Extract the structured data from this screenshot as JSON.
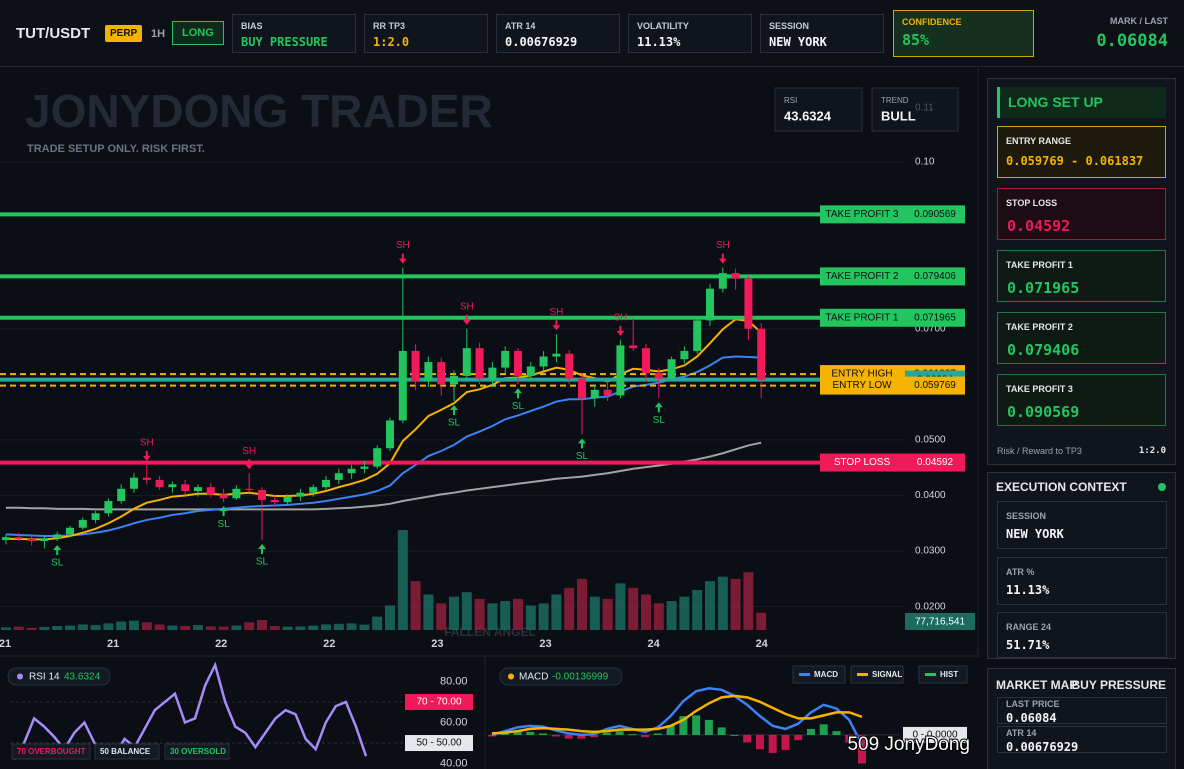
{
  "header": {
    "symbol": "TUT/USDT",
    "badge": "PERP",
    "timeframe": "1H",
    "side": "LONG",
    "stats": [
      {
        "label": "BIAS",
        "value": "BUY PRESSURE"
      },
      {
        "label": "RR TP3",
        "value": "1:2.0"
      },
      {
        "label": "ATR 14",
        "value": "0.00676929"
      },
      {
        "label": "VOLATILITY",
        "value": "11.13%"
      },
      {
        "label": "SESSION",
        "value": "NEW YORK"
      }
    ],
    "confidence": {
      "label": "CONFIDENCE",
      "value": "85%"
    },
    "mark": {
      "label": "MARK / LAST",
      "value": "0.06084"
    }
  },
  "main_chart": {
    "type": "candlestick",
    "watermark": "JONYDONG TRADER",
    "subtitle": "TRADE SETUP ONLY. RISK FIRST.",
    "footer_watermark": "FALLEN ANGEL",
    "rsi_box": {
      "label": "RSI",
      "value": "43.6324"
    },
    "trend_box": {
      "label": "TREND",
      "value": "BULL",
      "ghost": "0.11"
    },
    "ylim": [
      0.0158,
      0.1169
    ],
    "yticks": [
      {
        "value": 0.02,
        "label": "0.0200"
      },
      {
        "value": 0.03,
        "label": "0.0300"
      },
      {
        "value": 0.04,
        "label": "0.0400"
      },
      {
        "value": 0.05,
        "label": "0.0500"
      },
      {
        "value": 0.07,
        "label": "0.0700"
      },
      {
        "value": 0.1,
        "label": "0.10"
      }
    ],
    "x_labels": [
      "21",
      "21",
      "22",
      "22",
      "23",
      "23",
      "24",
      "24"
    ],
    "candles": [
      [
        0.032,
        0.033,
        0.0312,
        0.0325
      ],
      [
        0.0325,
        0.0333,
        0.0318,
        0.0322
      ],
      [
        0.0322,
        0.0328,
        0.031,
        0.0318
      ],
      [
        0.0318,
        0.0326,
        0.0305,
        0.0323
      ],
      [
        0.0323,
        0.0335,
        0.0318,
        0.033
      ],
      [
        0.033,
        0.0345,
        0.0326,
        0.0342
      ],
      [
        0.0342,
        0.036,
        0.0338,
        0.0356
      ],
      [
        0.0356,
        0.0372,
        0.035,
        0.0368
      ],
      [
        0.0368,
        0.0395,
        0.0362,
        0.039
      ],
      [
        0.039,
        0.042,
        0.0385,
        0.0412
      ],
      [
        0.0412,
        0.044,
        0.0405,
        0.0432
      ],
      [
        0.0432,
        0.0455,
        0.042,
        0.0428
      ],
      [
        0.0428,
        0.0435,
        0.041,
        0.0415
      ],
      [
        0.0415,
        0.0425,
        0.0405,
        0.042
      ],
      [
        0.042,
        0.0428,
        0.04,
        0.0408
      ],
      [
        0.0408,
        0.042,
        0.0398,
        0.0415
      ],
      [
        0.0415,
        0.0422,
        0.0396,
        0.0402
      ],
      [
        0.0402,
        0.0412,
        0.0388,
        0.0395
      ],
      [
        0.0395,
        0.0418,
        0.0392,
        0.0412
      ],
      [
        0.0412,
        0.044,
        0.0405,
        0.041
      ],
      [
        0.041,
        0.0415,
        0.032,
        0.0392
      ],
      [
        0.0392,
        0.04,
        0.038,
        0.0388
      ],
      [
        0.0388,
        0.0402,
        0.0382,
        0.0398
      ],
      [
        0.0398,
        0.0412,
        0.039,
        0.0405
      ],
      [
        0.0405,
        0.042,
        0.0398,
        0.0415
      ],
      [
        0.0415,
        0.0435,
        0.041,
        0.0428
      ],
      [
        0.0428,
        0.0448,
        0.042,
        0.044
      ],
      [
        0.044,
        0.0455,
        0.043,
        0.0448
      ],
      [
        0.0448,
        0.0462,
        0.044,
        0.0452
      ],
      [
        0.0452,
        0.049,
        0.0448,
        0.0485
      ],
      [
        0.0485,
        0.054,
        0.048,
        0.0535
      ],
      [
        0.0535,
        0.081,
        0.053,
        0.066
      ],
      [
        0.066,
        0.0672,
        0.059,
        0.0605
      ],
      [
        0.0605,
        0.065,
        0.0595,
        0.064
      ],
      [
        0.064,
        0.0648,
        0.058,
        0.06
      ],
      [
        0.06,
        0.0625,
        0.057,
        0.0615
      ],
      [
        0.0615,
        0.07,
        0.061,
        0.0665
      ],
      [
        0.0665,
        0.0675,
        0.06,
        0.061
      ],
      [
        0.061,
        0.064,
        0.0595,
        0.063
      ],
      [
        0.063,
        0.0668,
        0.062,
        0.066
      ],
      [
        0.066,
        0.0665,
        0.06,
        0.0615
      ],
      [
        0.0615,
        0.064,
        0.0605,
        0.0632
      ],
      [
        0.0632,
        0.066,
        0.0625,
        0.065
      ],
      [
        0.065,
        0.069,
        0.064,
        0.0655
      ],
      [
        0.0655,
        0.0662,
        0.06,
        0.061
      ],
      [
        0.061,
        0.062,
        0.051,
        0.0575
      ],
      [
        0.0575,
        0.06,
        0.056,
        0.059
      ],
      [
        0.059,
        0.0605,
        0.057,
        0.058
      ],
      [
        0.058,
        0.068,
        0.0575,
        0.067
      ],
      [
        0.067,
        0.072,
        0.066,
        0.0665
      ],
      [
        0.0665,
        0.0672,
        0.0605,
        0.062
      ],
      [
        0.062,
        0.063,
        0.0575,
        0.061
      ],
      [
        0.061,
        0.065,
        0.0605,
        0.0645
      ],
      [
        0.0645,
        0.0668,
        0.0638,
        0.066
      ],
      [
        0.066,
        0.072,
        0.0655,
        0.0715
      ],
      [
        0.0715,
        0.078,
        0.0705,
        0.0772
      ],
      [
        0.0772,
        0.081,
        0.0765,
        0.08
      ],
      [
        0.08,
        0.0808,
        0.077,
        0.079
      ],
      [
        0.079,
        0.0795,
        0.068,
        0.07
      ],
      [
        0.07,
        0.071,
        0.0575,
        0.0608
      ]
    ],
    "volumes": [
      12000000.0,
      15000000.0,
      10000000.0,
      14000000.0,
      18000000.0,
      20000000.0,
      25000000.0,
      22000000.0,
      30000000.0,
      38000000.0,
      42000000.0,
      35000000.0,
      25000000.0,
      20000000.0,
      18000000.0,
      22000000.0,
      16000000.0,
      15000000.0,
      20000000.0,
      35000000.0,
      45000000.0,
      18000000.0,
      15000000.0,
      16000000.0,
      20000000.0,
      25000000.0,
      28000000.0,
      30000000.0,
      24000000.0,
      60000000.0,
      110000000.0,
      450000000.0,
      220000000.0,
      160000000.0,
      120000000.0,
      150000000.0,
      170000000.0,
      140000000.0,
      120000000.0,
      130000000.0,
      140000000.0,
      110000000.0,
      120000000.0,
      160000000.0,
      190000000.0,
      230000000.0,
      150000000.0,
      140000000.0,
      210000000.0,
      190000000.0,
      160000000.0,
      120000000.0,
      130000000.0,
      150000000.0,
      180000000.0,
      220000000.0,
      240000000.0,
      230000000.0,
      260000000.0,
      77716541
    ],
    "volume_label": "77,716,541",
    "ema_fast": {
      "color": "#f5b301",
      "values": [
        0.0322,
        0.0322,
        0.0321,
        0.0321,
        0.0323,
        0.0327,
        0.0333,
        0.034,
        0.035,
        0.0362,
        0.0376,
        0.0387,
        0.0392,
        0.0398,
        0.04,
        0.0403,
        0.0403,
        0.0401,
        0.0403,
        0.0405,
        0.0402,
        0.0399,
        0.0399,
        0.04,
        0.0403,
        0.0408,
        0.0415,
        0.0421,
        0.0428,
        0.0439,
        0.0458,
        0.0498,
        0.0519,
        0.0543,
        0.0554,
        0.0566,
        0.0586,
        0.0591,
        0.0599,
        0.0611,
        0.0612,
        0.0616,
        0.0623,
        0.063,
        0.0626,
        0.0616,
        0.0611,
        0.0605,
        0.0618,
        0.0628,
        0.0626,
        0.0623,
        0.0627,
        0.0634,
        0.065,
        0.0674,
        0.0699,
        0.0717,
        0.0714,
        0.0693
      ]
    },
    "ema_mid": {
      "color": "#3b82f6",
      "values": [
        0.033,
        0.0329,
        0.0328,
        0.0327,
        0.0327,
        0.0328,
        0.033,
        0.0333,
        0.0337,
        0.0343,
        0.035,
        0.0356,
        0.036,
        0.0365,
        0.0368,
        0.0372,
        0.0374,
        0.0376,
        0.0378,
        0.038,
        0.0381,
        0.0382,
        0.0383,
        0.0385,
        0.0387,
        0.039,
        0.0394,
        0.0398,
        0.0402,
        0.0408,
        0.0418,
        0.044,
        0.0455,
        0.0471,
        0.048,
        0.0491,
        0.0506,
        0.0515,
        0.0525,
        0.0537,
        0.0544,
        0.0552,
        0.056,
        0.0569,
        0.0573,
        0.0573,
        0.0576,
        0.0578,
        0.0587,
        0.0596,
        0.0599,
        0.0603,
        0.0609,
        0.0614,
        0.0622,
        0.0634,
        0.0648,
        0.065,
        0.0649,
        0.0648
      ]
    },
    "ema_slow": {
      "color": "#a3a3a3",
      "values": [
        0.0378,
        0.0378,
        0.0377,
        0.0377,
        0.0376,
        0.0376,
        0.0376,
        0.0375,
        0.0375,
        0.0375,
        0.0375,
        0.0375,
        0.0375,
        0.0375,
        0.0375,
        0.0375,
        0.0375,
        0.0375,
        0.0375,
        0.0375,
        0.0375,
        0.0375,
        0.0375,
        0.0375,
        0.0375,
        0.0376,
        0.0377,
        0.0378,
        0.038,
        0.0382,
        0.0385,
        0.039,
        0.0394,
        0.0398,
        0.0402,
        0.0405,
        0.0409,
        0.0412,
        0.0415,
        0.0418,
        0.0421,
        0.0424,
        0.0427,
        0.043,
        0.0432,
        0.0434,
        0.0437,
        0.044,
        0.0444,
        0.0448,
        0.0451,
        0.0454,
        0.0457,
        0.0461,
        0.0465,
        0.047,
        0.0476,
        0.0483,
        0.049,
        0.0495
      ]
    },
    "levels": [
      {
        "name": "TAKE PROFIT 3",
        "value": 0.090569,
        "color": "#22c55e"
      },
      {
        "name": "TAKE PROFIT 2",
        "value": 0.079406,
        "color": "#22c55e"
      },
      {
        "name": "TAKE PROFIT 1",
        "value": 0.071965,
        "color": "#22c55e"
      },
      {
        "name": "ENTRY HIGH",
        "value": 0.061837,
        "color": "#f5b301",
        "style": "dashed"
      },
      {
        "value": 0.06084,
        "color": "#26a69a"
      },
      {
        "name": "ENTRY LOW",
        "value": 0.059769,
        "color": "#f5b301",
        "style": "dashed"
      },
      {
        "name": "STOP LOSS",
        "value": 0.04592,
        "color": "#f0195a"
      }
    ],
    "swing_markers": [
      {
        "label": "SH",
        "candle": 11
      },
      {
        "label": "SL",
        "candle": 4
      },
      {
        "label": "SL",
        "candle": 17
      },
      {
        "label": "SH",
        "candle": 19
      },
      {
        "label": "SL",
        "candle": 20
      },
      {
        "label": "SH",
        "candle": 31
      },
      {
        "label": "SL",
        "candle": 35
      },
      {
        "label": "SH",
        "candle": 36
      },
      {
        "label": "SL",
        "candle": 40
      },
      {
        "label": "SH",
        "candle": 43
      },
      {
        "label": "SL",
        "candle": 45
      },
      {
        "label": "SH",
        "candle": 48
      },
      {
        "label": "SL",
        "candle": 51
      },
      {
        "label": "SH",
        "candle": 56
      }
    ]
  },
  "side_panel": {
    "title": "LONG SET UP",
    "entry": {
      "label": "ENTRY RANGE",
      "value": "0.059769 - 0.061837"
    },
    "stop": {
      "label": "STOP LOSS",
      "value": "0.04592"
    },
    "targets": [
      {
        "label": "TAKE PROFIT 1",
        "value": "0.071965"
      },
      {
        "label": "TAKE PROFIT 2",
        "value": "0.079406"
      },
      {
        "label": "TAKE PROFIT 3",
        "value": "0.090569"
      }
    ],
    "rr": {
      "label": "Risk / Reward to TP3",
      "value": "1:2.0"
    },
    "context": {
      "title": "EXECUTION CONTEXT",
      "items": [
        {
          "label": "SESSION",
          "value": "NEW YORK"
        },
        {
          "label": "ATR %",
          "value": "11.13%"
        },
        {
          "label": "RANGE 24",
          "value": "51.71%"
        }
      ]
    },
    "market": {
      "title": "MARKET MAP",
      "state": "BUY PRESSURE",
      "items": [
        {
          "label": "LAST PRICE",
          "value": "0.06084"
        },
        {
          "label": "ATR 14",
          "value": "0.00676929"
        }
      ]
    }
  },
  "rsi_panel": {
    "title": "RSI 14",
    "value": "43.6324",
    "color": "#a78bfa",
    "ylim": [
      39.3,
      88
    ],
    "yticks": [
      {
        "value": 80,
        "label": "80.00"
      },
      {
        "value": 70,
        "label": "70.00"
      },
      {
        "value": 60,
        "label": "60.00"
      },
      {
        "value": 50,
        "label": "50.00"
      },
      {
        "value": 40,
        "label": "40.00"
      }
    ],
    "ref_lines": [
      {
        "value": 70,
        "label": "70 - 70.00",
        "color": "#f0195a"
      },
      {
        "value": 50,
        "label": "50 - 50.00",
        "color": "#e5e7eb"
      }
    ],
    "legend": [
      "70 OVERBOUGHT",
      "50 BALANCE",
      "30 OVERSOLD"
    ],
    "values": [
      42,
      50,
      62,
      58,
      53,
      47,
      55,
      60,
      50,
      45,
      44,
      52,
      48,
      57,
      66,
      70,
      74,
      60,
      62,
      78,
      88,
      70,
      58,
      55,
      48,
      55,
      62,
      66,
      64,
      52,
      47,
      60,
      68,
      70,
      58,
      43.6324
    ]
  },
  "macd_panel": {
    "title": "MACD",
    "value": "-0.00136999",
    "ylim": [
      -0.004,
      0.0093
    ],
    "zero": {
      "value": 0,
      "label": "0 - 0.0000"
    },
    "series": [
      {
        "name": "MACD",
        "color": "#3b82f6",
        "values": [
          0.0,
          0.0005,
          0.001,
          0.0012,
          0.0011,
          0.0006,
          0.0002,
          0.0,
          0.0001,
          0.0008,
          0.0012,
          0.0008,
          0.0004,
          0.001,
          0.0025,
          0.0045,
          0.0058,
          0.0062,
          0.006,
          0.0052,
          0.004,
          0.0025,
          0.0012,
          0.0008,
          0.0015,
          0.003,
          0.004,
          0.0035,
          0.002,
          -0.00136999
        ]
      },
      {
        "name": "SIGNAL",
        "color": "#f5b301",
        "values": [
          0.0002,
          0.0003,
          0.0005,
          0.0008,
          0.0009,
          0.0008,
          0.0007,
          0.0005,
          0.0004,
          0.0005,
          0.0007,
          0.0007,
          0.0007,
          0.0008,
          0.0012,
          0.002,
          0.0032,
          0.0042,
          0.005,
          0.0052,
          0.005,
          0.0044,
          0.0036,
          0.0028,
          0.0022,
          0.0022,
          0.0026,
          0.003,
          0.003,
          0.0024
        ]
      }
    ],
    "hist": {
      "name": "HIST",
      "color": "#22c55e",
      "values": [
        -0.0002,
        0.0002,
        0.0005,
        0.0004,
        0.0002,
        -0.0002,
        -0.0005,
        -0.0005,
        -0.0003,
        0.0003,
        0.0005,
        0.0001,
        -0.0003,
        0.0002,
        0.0013,
        0.0025,
        0.0026,
        0.002,
        0.001,
        0.0,
        -0.001,
        -0.0019,
        -0.0024,
        -0.002,
        -0.0007,
        0.0008,
        0.0014,
        0.0005,
        -0.001,
        -0.0038
      ]
    }
  },
  "watermark": "509 JonyDong"
}
